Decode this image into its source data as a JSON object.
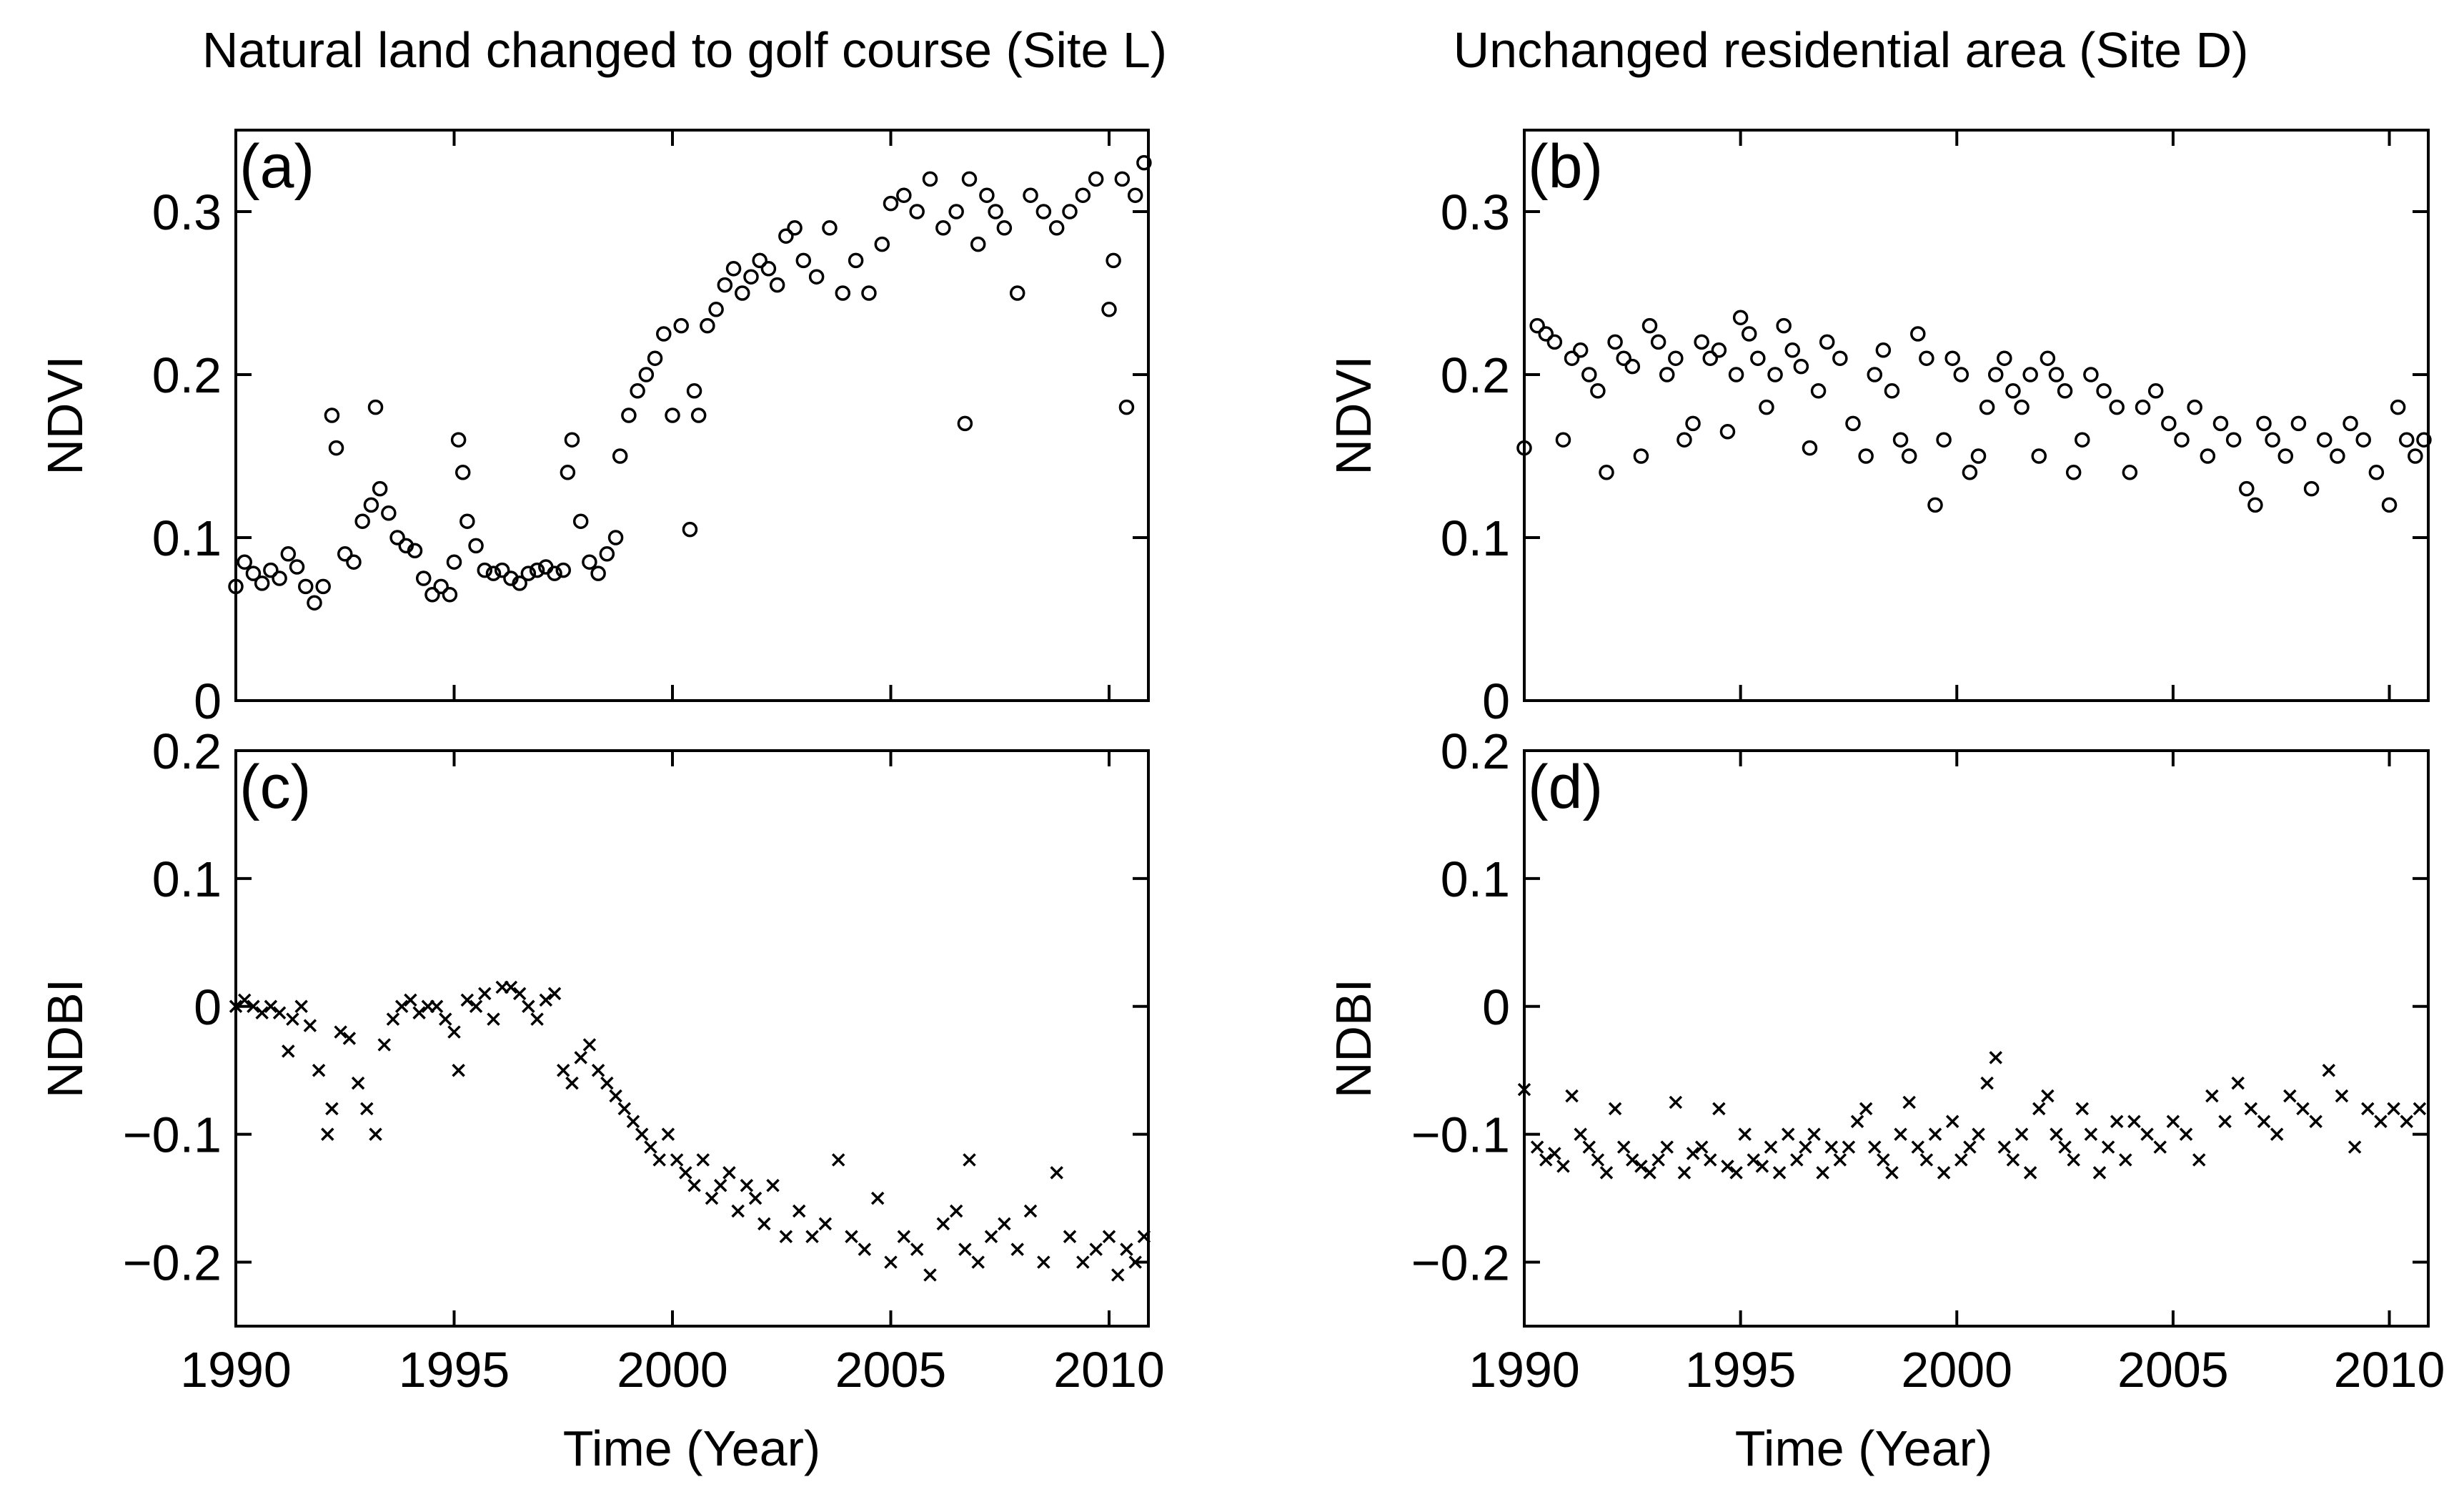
{
  "figure": {
    "left_title": "Natural land changed to golf course (Site L)",
    "right_title": "Unchanged residential area (Site D)",
    "xlabel": "Time (Year)"
  },
  "chart_data": [
    {
      "type": "scatter",
      "panel_label": "(a)",
      "ylabel": "NDVI",
      "xlim": [
        1990,
        2010.9
      ],
      "ylim": [
        0,
        0.35
      ],
      "xticks": [
        1990,
        1995,
        2000,
        2005,
        2010
      ],
      "yticks": [
        0,
        0.1,
        0.2,
        0.3
      ],
      "ytick_labels": [
        "0",
        "0.1",
        "0.2",
        "0.3"
      ],
      "show_xtick_labels": false,
      "marker": "circle",
      "series": [
        {
          "x": [
            1990.0,
            1990.2,
            1990.4,
            1990.6,
            1990.8,
            1991.0,
            1991.2,
            1991.4,
            1991.6,
            1991.8,
            1992.0,
            1992.2,
            1992.3,
            1992.5,
            1992.7,
            1992.9,
            1993.1,
            1993.2,
            1993.3,
            1993.5,
            1993.7,
            1993.9,
            1994.1,
            1994.3,
            1994.5,
            1994.7,
            1994.9,
            1995.0,
            1995.1,
            1995.2,
            1995.3,
            1995.5,
            1995.7,
            1995.9,
            1996.1,
            1996.3,
            1996.5,
            1996.7,
            1996.9,
            1997.1,
            1997.3,
            1997.5,
            1997.6,
            1997.7,
            1997.9,
            1998.1,
            1998.3,
            1998.5,
            1998.7,
            1998.8,
            1999.0,
            1999.2,
            1999.4,
            1999.6,
            1999.8,
            2000.0,
            2000.2,
            2000.4,
            2000.5,
            2000.6,
            2000.8,
            2001.0,
            2001.2,
            2001.4,
            2001.6,
            2001.8,
            2002.0,
            2002.2,
            2002.4,
            2002.6,
            2002.8,
            2003.0,
            2003.3,
            2003.6,
            2003.9,
            2004.2,
            2004.5,
            2004.8,
            2005.0,
            2005.3,
            2005.6,
            2005.9,
            2006.2,
            2006.5,
            2006.7,
            2006.8,
            2007.0,
            2007.2,
            2007.4,
            2007.6,
            2007.9,
            2008.2,
            2008.5,
            2008.8,
            2009.1,
            2009.4,
            2009.7,
            2010.0,
            2010.1,
            2010.3,
            2010.4,
            2010.6,
            2010.8
          ],
          "y": [
            0.07,
            0.085,
            0.078,
            0.072,
            0.08,
            0.075,
            0.09,
            0.082,
            0.07,
            0.06,
            0.07,
            0.175,
            0.155,
            0.09,
            0.085,
            0.11,
            0.12,
            0.18,
            0.13,
            0.115,
            0.1,
            0.095,
            0.092,
            0.075,
            0.065,
            0.07,
            0.065,
            0.085,
            0.16,
            0.14,
            0.11,
            0.095,
            0.08,
            0.078,
            0.08,
            0.075,
            0.072,
            0.078,
            0.08,
            0.082,
            0.078,
            0.08,
            0.14,
            0.16,
            0.11,
            0.085,
            0.078,
            0.09,
            0.1,
            0.15,
            0.175,
            0.19,
            0.2,
            0.21,
            0.225,
            0.175,
            0.23,
            0.105,
            0.19,
            0.175,
            0.23,
            0.24,
            0.255,
            0.265,
            0.25,
            0.26,
            0.27,
            0.265,
            0.255,
            0.285,
            0.29,
            0.27,
            0.26,
            0.29,
            0.25,
            0.27,
            0.25,
            0.28,
            0.305,
            0.31,
            0.3,
            0.32,
            0.29,
            0.3,
            0.17,
            0.32,
            0.28,
            0.31,
            0.3,
            0.29,
            0.25,
            0.31,
            0.3,
            0.29,
            0.3,
            0.31,
            0.32,
            0.24,
            0.27,
            0.32,
            0.18,
            0.31,
            0.33
          ]
        }
      ]
    },
    {
      "type": "scatter",
      "panel_label": "(b)",
      "ylabel": "NDVI",
      "xlim": [
        1990,
        2010.9
      ],
      "ylim": [
        0,
        0.35
      ],
      "xticks": [
        1990,
        1995,
        2000,
        2005,
        2010
      ],
      "yticks": [
        0,
        0.1,
        0.2,
        0.3
      ],
      "ytick_labels": [
        "0",
        "0.1",
        "0.2",
        "0.3"
      ],
      "show_xtick_labels": false,
      "marker": "circle",
      "series": [
        {
          "x": [
            1990.0,
            1990.3,
            1990.5,
            1990.7,
            1990.9,
            1991.1,
            1991.3,
            1991.5,
            1991.7,
            1991.9,
            1992.1,
            1992.3,
            1992.5,
            1992.7,
            1992.9,
            1993.1,
            1993.3,
            1993.5,
            1993.7,
            1993.9,
            1994.1,
            1994.3,
            1994.5,
            1994.7,
            1994.9,
            1995.0,
            1995.2,
            1995.4,
            1995.6,
            1995.8,
            1996.0,
            1996.2,
            1996.4,
            1996.6,
            1996.8,
            1997.0,
            1997.3,
            1997.6,
            1997.9,
            1998.1,
            1998.3,
            1998.5,
            1998.7,
            1998.9,
            1999.1,
            1999.3,
            1999.5,
            1999.7,
            1999.9,
            2000.1,
            2000.3,
            2000.5,
            2000.7,
            2000.9,
            2001.1,
            2001.3,
            2001.5,
            2001.7,
            2001.9,
            2002.1,
            2002.3,
            2002.5,
            2002.7,
            2002.9,
            2003.1,
            2003.4,
            2003.7,
            2004.0,
            2004.3,
            2004.6,
            2004.9,
            2005.2,
            2005.5,
            2005.8,
            2006.1,
            2006.4,
            2006.7,
            2006.9,
            2007.1,
            2007.3,
            2007.6,
            2007.9,
            2008.2,
            2008.5,
            2008.8,
            2009.1,
            2009.4,
            2009.7,
            2010.0,
            2010.2,
            2010.4,
            2010.6,
            2010.8
          ],
          "y": [
            0.155,
            0.23,
            0.225,
            0.22,
            0.16,
            0.21,
            0.215,
            0.2,
            0.19,
            0.14,
            0.22,
            0.21,
            0.205,
            0.15,
            0.23,
            0.22,
            0.2,
            0.21,
            0.16,
            0.17,
            0.22,
            0.21,
            0.215,
            0.165,
            0.2,
            0.235,
            0.225,
            0.21,
            0.18,
            0.2,
            0.23,
            0.215,
            0.205,
            0.155,
            0.19,
            0.22,
            0.21,
            0.17,
            0.15,
            0.2,
            0.215,
            0.19,
            0.16,
            0.15,
            0.225,
            0.21,
            0.12,
            0.16,
            0.21,
            0.2,
            0.14,
            0.15,
            0.18,
            0.2,
            0.21,
            0.19,
            0.18,
            0.2,
            0.15,
            0.21,
            0.2,
            0.19,
            0.14,
            0.16,
            0.2,
            0.19,
            0.18,
            0.14,
            0.18,
            0.19,
            0.17,
            0.16,
            0.18,
            0.15,
            0.17,
            0.16,
            0.13,
            0.12,
            0.17,
            0.16,
            0.15,
            0.17,
            0.13,
            0.16,
            0.15,
            0.17,
            0.16,
            0.14,
            0.12,
            0.18,
            0.16,
            0.15,
            0.16
          ]
        }
      ]
    },
    {
      "type": "scatter",
      "panel_label": "(c)",
      "ylabel": "NDBI",
      "xlim": [
        1990,
        2010.9
      ],
      "ylim": [
        -0.25,
        0.2
      ],
      "xticks": [
        1990,
        1995,
        2000,
        2005,
        2010
      ],
      "xtick_labels": [
        "1990",
        "1995",
        "2000",
        "2005",
        "2010"
      ],
      "yticks": [
        -0.2,
        -0.1,
        0,
        0.1,
        0.2
      ],
      "ytick_labels": [
        "−0.2",
        "−0.1",
        "0",
        "0.1",
        "0.2"
      ],
      "show_xtick_labels": true,
      "marker": "x",
      "series": [
        {
          "x": [
            1990.0,
            1990.2,
            1990.4,
            1990.6,
            1990.8,
            1991.0,
            1991.2,
            1991.3,
            1991.5,
            1991.7,
            1991.9,
            1992.1,
            1992.2,
            1992.4,
            1992.6,
            1992.8,
            1993.0,
            1993.2,
            1993.4,
            1993.6,
            1993.8,
            1994.0,
            1994.2,
            1994.4,
            1994.6,
            1994.8,
            1995.0,
            1995.1,
            1995.3,
            1995.5,
            1995.7,
            1995.9,
            1996.1,
            1996.3,
            1996.5,
            1996.7,
            1996.9,
            1997.1,
            1997.3,
            1997.5,
            1997.7,
            1997.9,
            1998.1,
            1998.3,
            1998.5,
            1998.7,
            1998.9,
            1999.1,
            1999.3,
            1999.5,
            1999.7,
            1999.9,
            2000.1,
            2000.3,
            2000.5,
            2000.7,
            2000.9,
            2001.1,
            2001.3,
            2001.5,
            2001.7,
            2001.9,
            2002.1,
            2002.3,
            2002.6,
            2002.9,
            2003.2,
            2003.5,
            2003.8,
            2004.1,
            2004.4,
            2004.7,
            2005.0,
            2005.3,
            2005.6,
            2005.9,
            2006.2,
            2006.5,
            2006.7,
            2006.8,
            2007.0,
            2007.3,
            2007.6,
            2007.9,
            2008.2,
            2008.5,
            2008.8,
            2009.1,
            2009.4,
            2009.7,
            2010.0,
            2010.2,
            2010.4,
            2010.6,
            2010.8
          ],
          "y": [
            0.0,
            0.005,
            0.0,
            -0.005,
            0.0,
            -0.005,
            -0.035,
            -0.01,
            0.0,
            -0.015,
            -0.05,
            -0.1,
            -0.08,
            -0.02,
            -0.025,
            -0.06,
            -0.08,
            -0.1,
            -0.03,
            -0.01,
            0.0,
            0.005,
            -0.005,
            0.0,
            0.0,
            -0.01,
            -0.02,
            -0.05,
            0.005,
            0.0,
            0.01,
            -0.01,
            0.015,
            0.015,
            0.01,
            0.0,
            -0.01,
            0.005,
            0.01,
            -0.05,
            -0.06,
            -0.04,
            -0.03,
            -0.05,
            -0.06,
            -0.07,
            -0.08,
            -0.09,
            -0.1,
            -0.11,
            -0.12,
            -0.1,
            -0.12,
            -0.13,
            -0.14,
            -0.12,
            -0.15,
            -0.14,
            -0.13,
            -0.16,
            -0.14,
            -0.15,
            -0.17,
            -0.14,
            -0.18,
            -0.16,
            -0.18,
            -0.17,
            -0.12,
            -0.18,
            -0.19,
            -0.15,
            -0.2,
            -0.18,
            -0.19,
            -0.21,
            -0.17,
            -0.16,
            -0.19,
            -0.12,
            -0.2,
            -0.18,
            -0.17,
            -0.19,
            -0.16,
            -0.2,
            -0.13,
            -0.18,
            -0.2,
            -0.19,
            -0.18,
            -0.21,
            -0.19,
            -0.2,
            -0.18
          ]
        }
      ]
    },
    {
      "type": "scatter",
      "panel_label": "(d)",
      "ylabel": "NDBI",
      "xlim": [
        1990,
        2010.9
      ],
      "ylim": [
        -0.25,
        0.2
      ],
      "xticks": [
        1990,
        1995,
        2000,
        2005,
        2010
      ],
      "xtick_labels": [
        "1990",
        "1995",
        "2000",
        "2005",
        "2010"
      ],
      "yticks": [
        -0.2,
        -0.1,
        0,
        0.1,
        0.2
      ],
      "ytick_labels": [
        "−0.2",
        "−0.1",
        "0",
        "0.1",
        "0.2"
      ],
      "show_xtick_labels": true,
      "marker": "x",
      "series": [
        {
          "x": [
            1990.0,
            1990.3,
            1990.5,
            1990.7,
            1990.9,
            1991.1,
            1991.3,
            1991.5,
            1991.7,
            1991.9,
            1992.1,
            1992.3,
            1992.5,
            1992.7,
            1992.9,
            1993.1,
            1993.3,
            1993.5,
            1993.7,
            1993.9,
            1994.1,
            1994.3,
            1994.5,
            1994.7,
            1994.9,
            1995.1,
            1995.3,
            1995.5,
            1995.7,
            1995.9,
            1996.1,
            1996.3,
            1996.5,
            1996.7,
            1996.9,
            1997.1,
            1997.3,
            1997.5,
            1997.7,
            1997.9,
            1998.1,
            1998.3,
            1998.5,
            1998.7,
            1998.9,
            1999.1,
            1999.3,
            1999.5,
            1999.7,
            1999.9,
            2000.1,
            2000.3,
            2000.5,
            2000.7,
            2000.9,
            2001.1,
            2001.3,
            2001.5,
            2001.7,
            2001.9,
            2002.1,
            2002.3,
            2002.5,
            2002.7,
            2002.9,
            2003.1,
            2003.3,
            2003.5,
            2003.7,
            2003.9,
            2004.1,
            2004.4,
            2004.7,
            2005.0,
            2005.3,
            2005.6,
            2005.9,
            2006.2,
            2006.5,
            2006.8,
            2007.1,
            2007.4,
            2007.7,
            2008.0,
            2008.3,
            2008.6,
            2008.9,
            2009.2,
            2009.5,
            2009.8,
            2010.1,
            2010.4,
            2010.7
          ],
          "y": [
            -0.065,
            -0.11,
            -0.12,
            -0.115,
            -0.125,
            -0.07,
            -0.1,
            -0.11,
            -0.12,
            -0.13,
            -0.08,
            -0.11,
            -0.12,
            -0.125,
            -0.13,
            -0.12,
            -0.11,
            -0.075,
            -0.13,
            -0.115,
            -0.11,
            -0.12,
            -0.08,
            -0.125,
            -0.13,
            -0.1,
            -0.12,
            -0.125,
            -0.11,
            -0.13,
            -0.1,
            -0.12,
            -0.11,
            -0.1,
            -0.13,
            -0.11,
            -0.12,
            -0.11,
            -0.09,
            -0.08,
            -0.11,
            -0.12,
            -0.13,
            -0.1,
            -0.075,
            -0.11,
            -0.12,
            -0.1,
            -0.13,
            -0.09,
            -0.12,
            -0.11,
            -0.1,
            -0.06,
            -0.04,
            -0.11,
            -0.12,
            -0.1,
            -0.13,
            -0.08,
            -0.07,
            -0.1,
            -0.11,
            -0.12,
            -0.08,
            -0.1,
            -0.13,
            -0.11,
            -0.09,
            -0.12,
            -0.09,
            -0.1,
            -0.11,
            -0.09,
            -0.1,
            -0.12,
            -0.07,
            -0.09,
            -0.06,
            -0.08,
            -0.09,
            -0.1,
            -0.07,
            -0.08,
            -0.09,
            -0.05,
            -0.07,
            -0.11,
            -0.08,
            -0.09,
            -0.08,
            -0.09,
            -0.08
          ]
        }
      ]
    }
  ]
}
